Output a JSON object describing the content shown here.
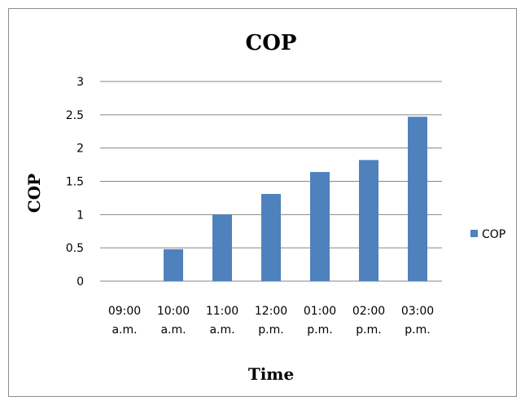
{
  "chart_data": {
    "type": "bar",
    "title": "COP",
    "xlabel": "Time",
    "ylabel": "COP",
    "categories": [
      [
        "09:00",
        "a.m."
      ],
      [
        "10:00",
        "a.m."
      ],
      [
        "11:00",
        "a.m."
      ],
      [
        "12:00",
        "p.m."
      ],
      [
        "01:00",
        "p.m."
      ],
      [
        "02:00",
        "p.m."
      ],
      [
        "03:00",
        "p.m."
      ]
    ],
    "series": [
      {
        "name": "COP",
        "values": [
          0,
          0.48,
          1.0,
          1.31,
          1.64,
          1.82,
          2.47
        ],
        "color": "#4F81BD"
      }
    ],
    "ylim": [
      0,
      3
    ],
    "yticks": [
      "0",
      "0.5",
      "1",
      "1.5",
      "2",
      "2.5",
      "3"
    ],
    "grid": true,
    "legend": "right"
  }
}
